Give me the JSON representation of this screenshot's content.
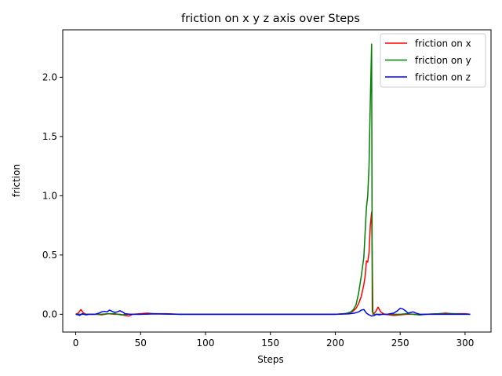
{
  "chart_data": {
    "type": "line",
    "title": "friction on x y z axis over Steps",
    "xlabel": "Steps",
    "ylabel": "friction",
    "xlim": [
      -10,
      320
    ],
    "ylim": [
      -0.15,
      2.4
    ],
    "xticks": [
      0,
      50,
      100,
      150,
      200,
      250,
      300
    ],
    "yticks": [
      0.0,
      0.5,
      1.0,
      1.5,
      2.0
    ],
    "xtick_labels": [
      "0",
      "50",
      "100",
      "150",
      "200",
      "250",
      "300"
    ],
    "ytick_labels": [
      "0.0",
      "0.5",
      "1.0",
      "1.5",
      "2.0"
    ],
    "grid": false,
    "legend_position": "top-right",
    "series": [
      {
        "name": "friction on x",
        "color": "#ff0000",
        "points": [
          [
            0,
            0.0
          ],
          [
            2,
            0.01
          ],
          [
            4,
            0.04
          ],
          [
            6,
            0.01
          ],
          [
            8,
            0.0
          ],
          [
            12,
            0.0
          ],
          [
            16,
            0.0
          ],
          [
            20,
            -0.005
          ],
          [
            25,
            0.005
          ],
          [
            30,
            0.0
          ],
          [
            34,
            0.0
          ],
          [
            38,
            -0.01
          ],
          [
            41,
            -0.015
          ],
          [
            44,
            0.0
          ],
          [
            50,
            0.005
          ],
          [
            55,
            0.01
          ],
          [
            60,
            0.005
          ],
          [
            70,
            0.005
          ],
          [
            80,
            0.0
          ],
          [
            100,
            0.0
          ],
          [
            150,
            0.0
          ],
          [
            200,
            0.0
          ],
          [
            205,
            0.003
          ],
          [
            210,
            0.01
          ],
          [
            213,
            0.02
          ],
          [
            216,
            0.05
          ],
          [
            218,
            0.09
          ],
          [
            220,
            0.15
          ],
          [
            222,
            0.25
          ],
          [
            223,
            0.32
          ],
          [
            224,
            0.45
          ],
          [
            225,
            0.44
          ],
          [
            226,
            0.52
          ],
          [
            227,
            0.75
          ],
          [
            228,
            0.86
          ],
          [
            229,
            0.0
          ],
          [
            231,
            0.02
          ],
          [
            233,
            0.06
          ],
          [
            235,
            0.02
          ],
          [
            238,
            0.0
          ],
          [
            245,
            -0.01
          ],
          [
            250,
            -0.005
          ],
          [
            255,
            0.0
          ],
          [
            260,
            0.0
          ],
          [
            265,
            -0.005
          ],
          [
            270,
            0.0
          ],
          [
            280,
            0.005
          ],
          [
            285,
            0.01
          ],
          [
            290,
            0.005
          ],
          [
            300,
            0.005
          ],
          [
            304,
            0.0
          ]
        ]
      },
      {
        "name": "friction on y",
        "color": "#008000",
        "points": [
          [
            0,
            0.0
          ],
          [
            10,
            0.0
          ],
          [
            20,
            0.0
          ],
          [
            25,
            0.005
          ],
          [
            30,
            0.005
          ],
          [
            35,
            -0.005
          ],
          [
            40,
            0.0
          ],
          [
            50,
            0.0
          ],
          [
            60,
            0.005
          ],
          [
            80,
            0.0
          ],
          [
            100,
            0.0
          ],
          [
            150,
            0.0
          ],
          [
            200,
            0.0
          ],
          [
            208,
            0.005
          ],
          [
            212,
            0.02
          ],
          [
            214,
            0.04
          ],
          [
            216,
            0.08
          ],
          [
            218,
            0.18
          ],
          [
            220,
            0.32
          ],
          [
            222,
            0.48
          ],
          [
            224,
            0.9
          ],
          [
            225,
            1.0
          ],
          [
            226,
            1.25
          ],
          [
            227,
            1.8
          ],
          [
            228,
            2.28
          ],
          [
            228.5,
            0.02
          ],
          [
            230,
            0.0
          ],
          [
            235,
            0.0
          ],
          [
            240,
            0.0
          ],
          [
            245,
            0.0
          ],
          [
            250,
            0.0
          ],
          [
            255,
            0.005
          ],
          [
            260,
            0.0
          ],
          [
            265,
            -0.005
          ],
          [
            270,
            0.0
          ],
          [
            280,
            0.005
          ],
          [
            290,
            0.005
          ],
          [
            304,
            0.0
          ]
        ]
      },
      {
        "name": "friction on z",
        "color": "#0000ff",
        "points": [
          [
            0,
            0.0
          ],
          [
            2,
            -0.005
          ],
          [
            3,
            -0.01
          ],
          [
            5,
            0.005
          ],
          [
            8,
            -0.005
          ],
          [
            10,
            0.0
          ],
          [
            15,
            0.0
          ],
          [
            18,
            0.01
          ],
          [
            20,
            0.02
          ],
          [
            22,
            0.025
          ],
          [
            24,
            0.02
          ],
          [
            26,
            0.035
          ],
          [
            28,
            0.025
          ],
          [
            30,
            0.015
          ],
          [
            32,
            0.02
          ],
          [
            34,
            0.03
          ],
          [
            36,
            0.02
          ],
          [
            38,
            0.005
          ],
          [
            42,
            0.0
          ],
          [
            50,
            0.0
          ],
          [
            60,
            0.003
          ],
          [
            80,
            0.0
          ],
          [
            100,
            0.0
          ],
          [
            150,
            0.0
          ],
          [
            200,
            0.0
          ],
          [
            210,
            0.003
          ],
          [
            215,
            0.01
          ],
          [
            218,
            0.02
          ],
          [
            220,
            0.035
          ],
          [
            222,
            0.04
          ],
          [
            224,
            0.01
          ],
          [
            226,
            -0.005
          ],
          [
            228,
            -0.015
          ],
          [
            230,
            -0.01
          ],
          [
            232,
            0.0
          ],
          [
            234,
            -0.005
          ],
          [
            236,
            0.0
          ],
          [
            240,
            0.0
          ],
          [
            245,
            0.01
          ],
          [
            248,
            0.03
          ],
          [
            250,
            0.05
          ],
          [
            252,
            0.045
          ],
          [
            254,
            0.03
          ],
          [
            256,
            0.01
          ],
          [
            258,
            0.015
          ],
          [
            260,
            0.02
          ],
          [
            262,
            0.01
          ],
          [
            265,
            0.0
          ],
          [
            270,
            0.0
          ],
          [
            280,
            0.0
          ],
          [
            290,
            0.0
          ],
          [
            300,
            0.0
          ],
          [
            304,
            0.0
          ]
        ]
      }
    ]
  }
}
